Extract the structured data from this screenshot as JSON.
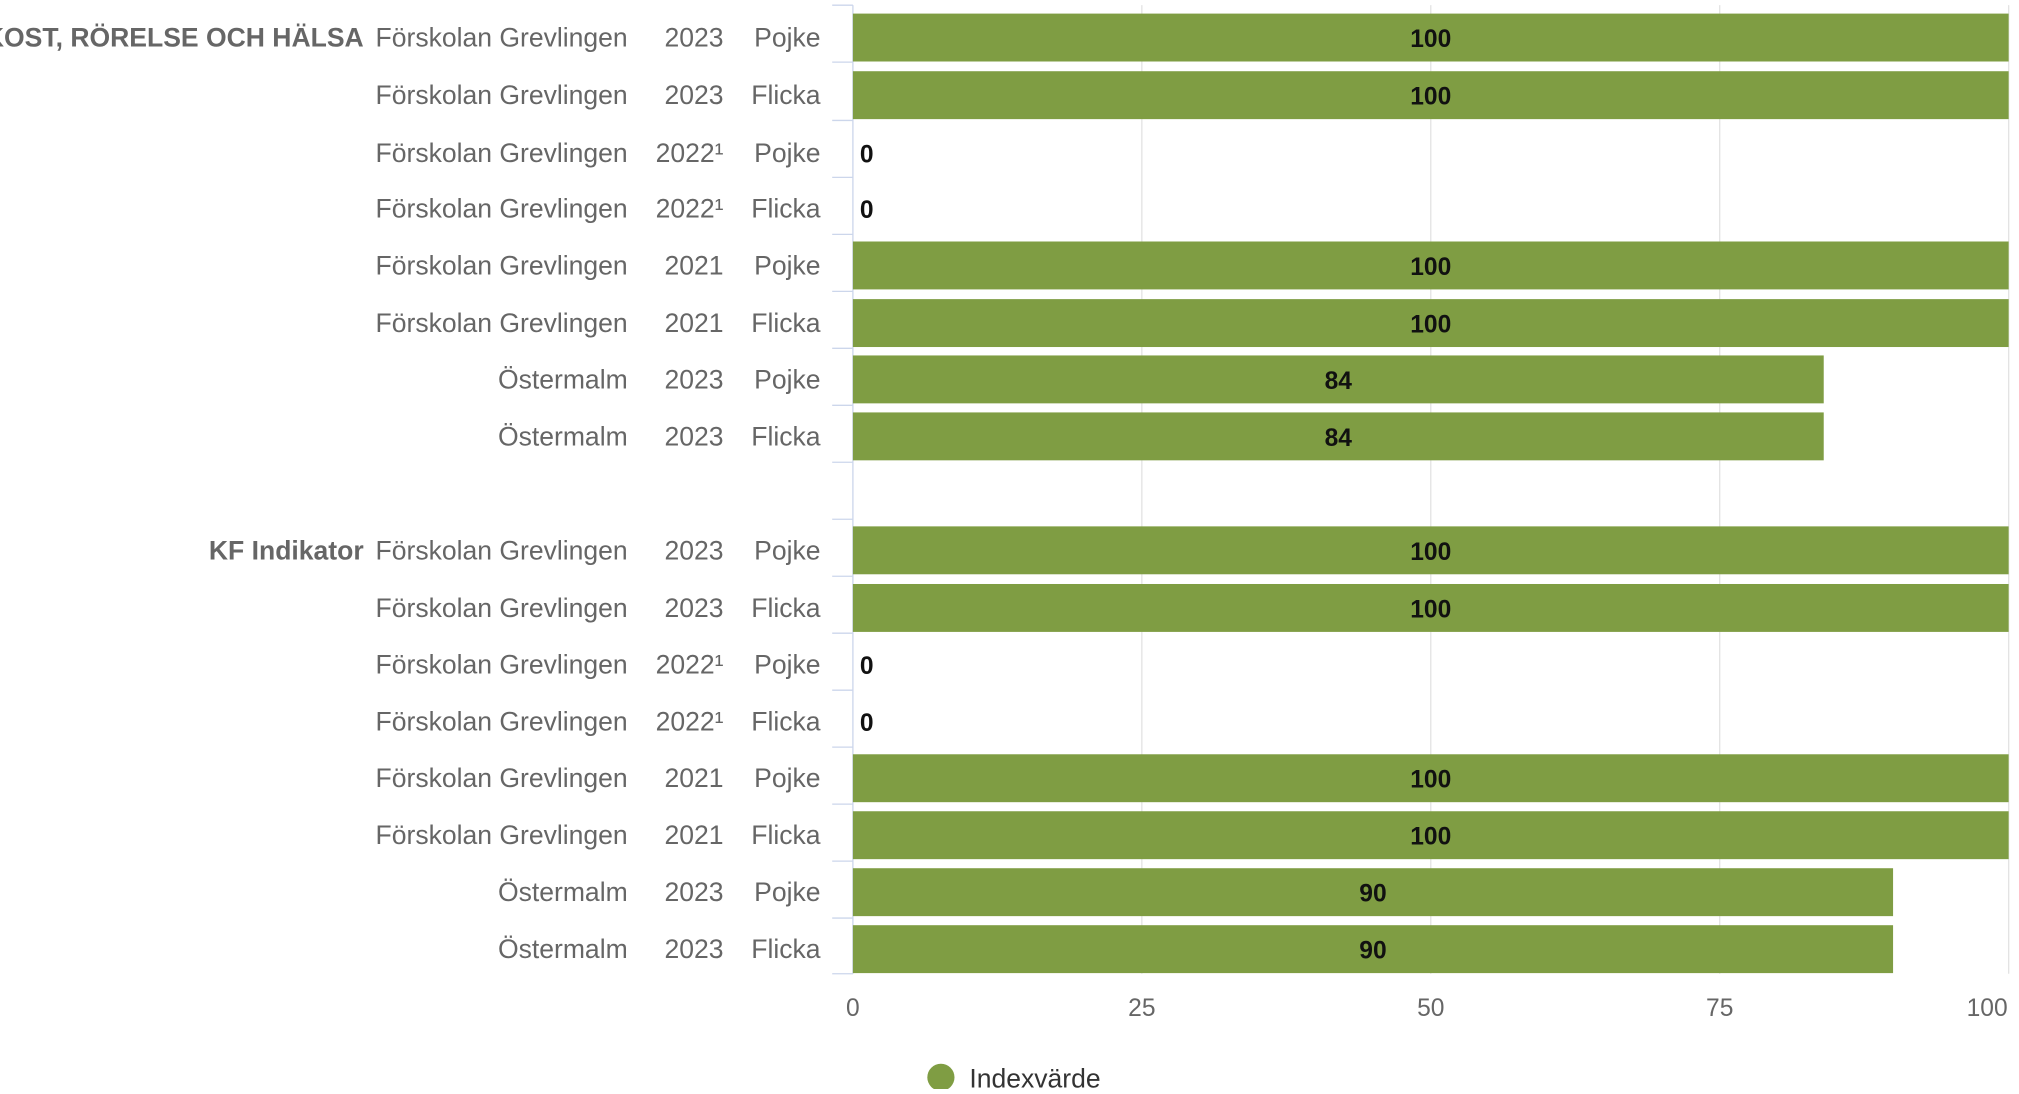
{
  "chart_data": {
    "type": "bar",
    "orientation": "horizontal",
    "xlim": [
      0,
      100
    ],
    "x_ticks": [
      "0",
      "25",
      "50",
      "75",
      "100"
    ],
    "grid": true,
    "legend_position": "bottom-center",
    "legend": [
      {
        "name": "Indexvärde",
        "color": "#7f9d43"
      }
    ],
    "groups": [
      {
        "label": "KOST, RÖRELSE OCH HÄLSA",
        "rows": [
          {
            "unit": "Förskolan Grevlingen",
            "year": "2023",
            "gender": "Pojke",
            "value": 100,
            "value_label": "100"
          },
          {
            "unit": "Förskolan Grevlingen",
            "year": "2023",
            "gender": "Flicka",
            "value": 100,
            "value_label": "100"
          },
          {
            "unit": "Förskolan Grevlingen",
            "year": "2022¹",
            "gender": "Pojke",
            "value": 0,
            "value_label": "0"
          },
          {
            "unit": "Förskolan Grevlingen",
            "year": "2022¹",
            "gender": "Flicka",
            "value": 0,
            "value_label": "0"
          },
          {
            "unit": "Förskolan Grevlingen",
            "year": "2021",
            "gender": "Pojke",
            "value": 100,
            "value_label": "100"
          },
          {
            "unit": "Förskolan Grevlingen",
            "year": "2021",
            "gender": "Flicka",
            "value": 100,
            "value_label": "100"
          },
          {
            "unit": "Östermalm",
            "year": "2023",
            "gender": "Pojke",
            "value": 84,
            "value_label": "84"
          },
          {
            "unit": "Östermalm",
            "year": "2023",
            "gender": "Flicka",
            "value": 84,
            "value_label": "84"
          }
        ]
      },
      {
        "label": "KF Indikator",
        "rows": [
          {
            "unit": "Förskolan Grevlingen",
            "year": "2023",
            "gender": "Pojke",
            "value": 100,
            "value_label": "100"
          },
          {
            "unit": "Förskolan Grevlingen",
            "year": "2023",
            "gender": "Flicka",
            "value": 100,
            "value_label": "100"
          },
          {
            "unit": "Förskolan Grevlingen",
            "year": "2022¹",
            "gender": "Pojke",
            "value": 0,
            "value_label": "0"
          },
          {
            "unit": "Förskolan Grevlingen",
            "year": "2022¹",
            "gender": "Flicka",
            "value": 0,
            "value_label": "0"
          },
          {
            "unit": "Förskolan Grevlingen",
            "year": "2021",
            "gender": "Pojke",
            "value": 100,
            "value_label": "100"
          },
          {
            "unit": "Förskolan Grevlingen",
            "year": "2021",
            "gender": "Flicka",
            "value": 100,
            "value_label": "100"
          },
          {
            "unit": "Östermalm",
            "year": "2023",
            "gender": "Pojke",
            "value": 90,
            "value_label": "90"
          },
          {
            "unit": "Östermalm",
            "year": "2023",
            "gender": "Flicka",
            "value": 90,
            "value_label": "90"
          }
        ]
      }
    ]
  }
}
